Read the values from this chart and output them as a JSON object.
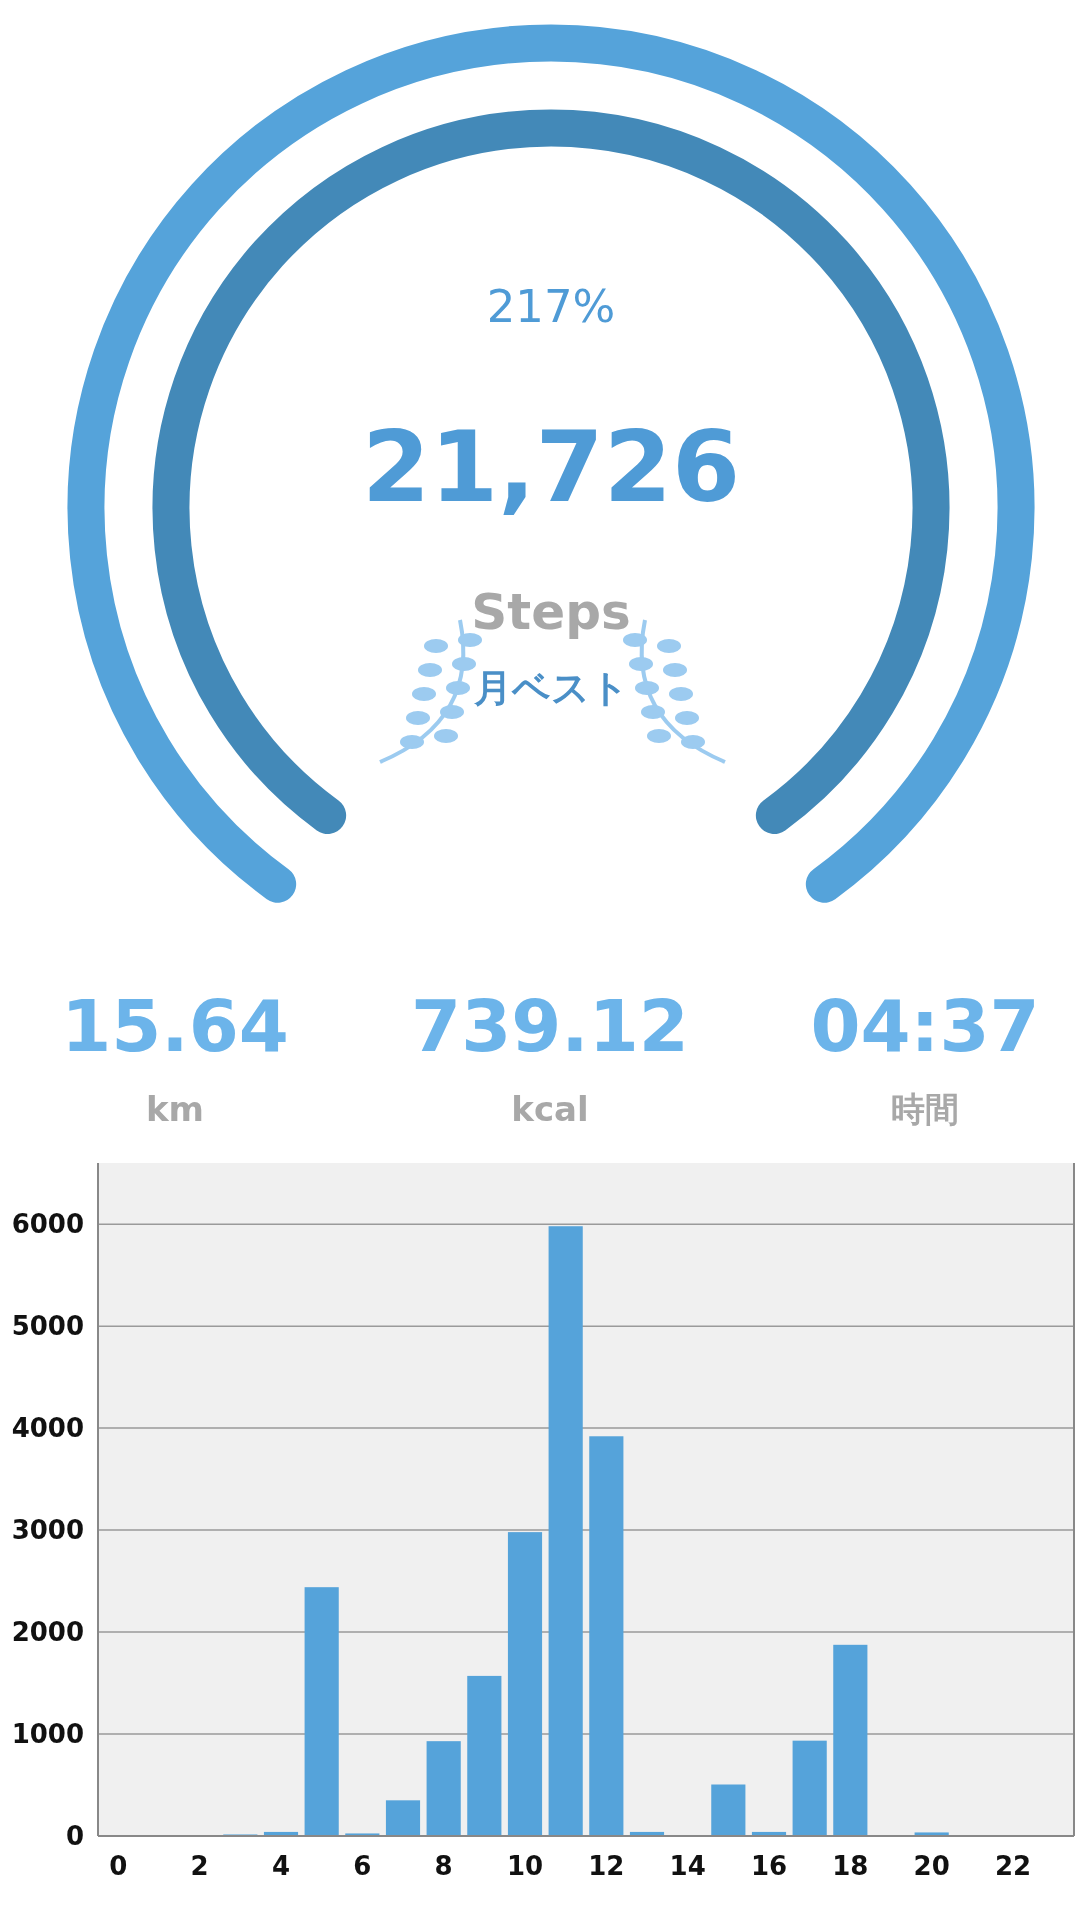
{
  "chart_data": [
    {
      "type": "other",
      "annotations": [
        "217%",
        "21,726",
        "Steps",
        "月ベスト",
        "15.64",
        "km",
        "739.12",
        "kcal",
        "04:37",
        "時間"
      ]
    },
    {
      "type": "bar",
      "x": [
        0,
        1,
        2,
        3,
        4,
        5,
        6,
        7,
        8,
        9,
        10,
        11,
        12,
        13,
        14,
        15,
        16,
        17,
        18,
        19,
        20,
        21,
        22,
        23
      ],
      "values": [
        0,
        0,
        0,
        15,
        40,
        2440,
        25,
        350,
        930,
        1570,
        2980,
        5980,
        3920,
        40,
        0,
        505,
        40,
        935,
        1875,
        0,
        35,
        0,
        0,
        0
      ],
      "color": "#55a3da",
      "xlim": [
        -0.5,
        23.5
      ],
      "xticks": [
        0,
        2,
        4,
        6,
        8,
        10,
        12,
        14,
        16,
        18,
        20,
        22
      ],
      "ylim": [
        0,
        6600
      ],
      "yticks": [
        0,
        1000,
        2000,
        3000,
        4000,
        5000,
        6000
      ],
      "grid": "y"
    }
  ]
}
